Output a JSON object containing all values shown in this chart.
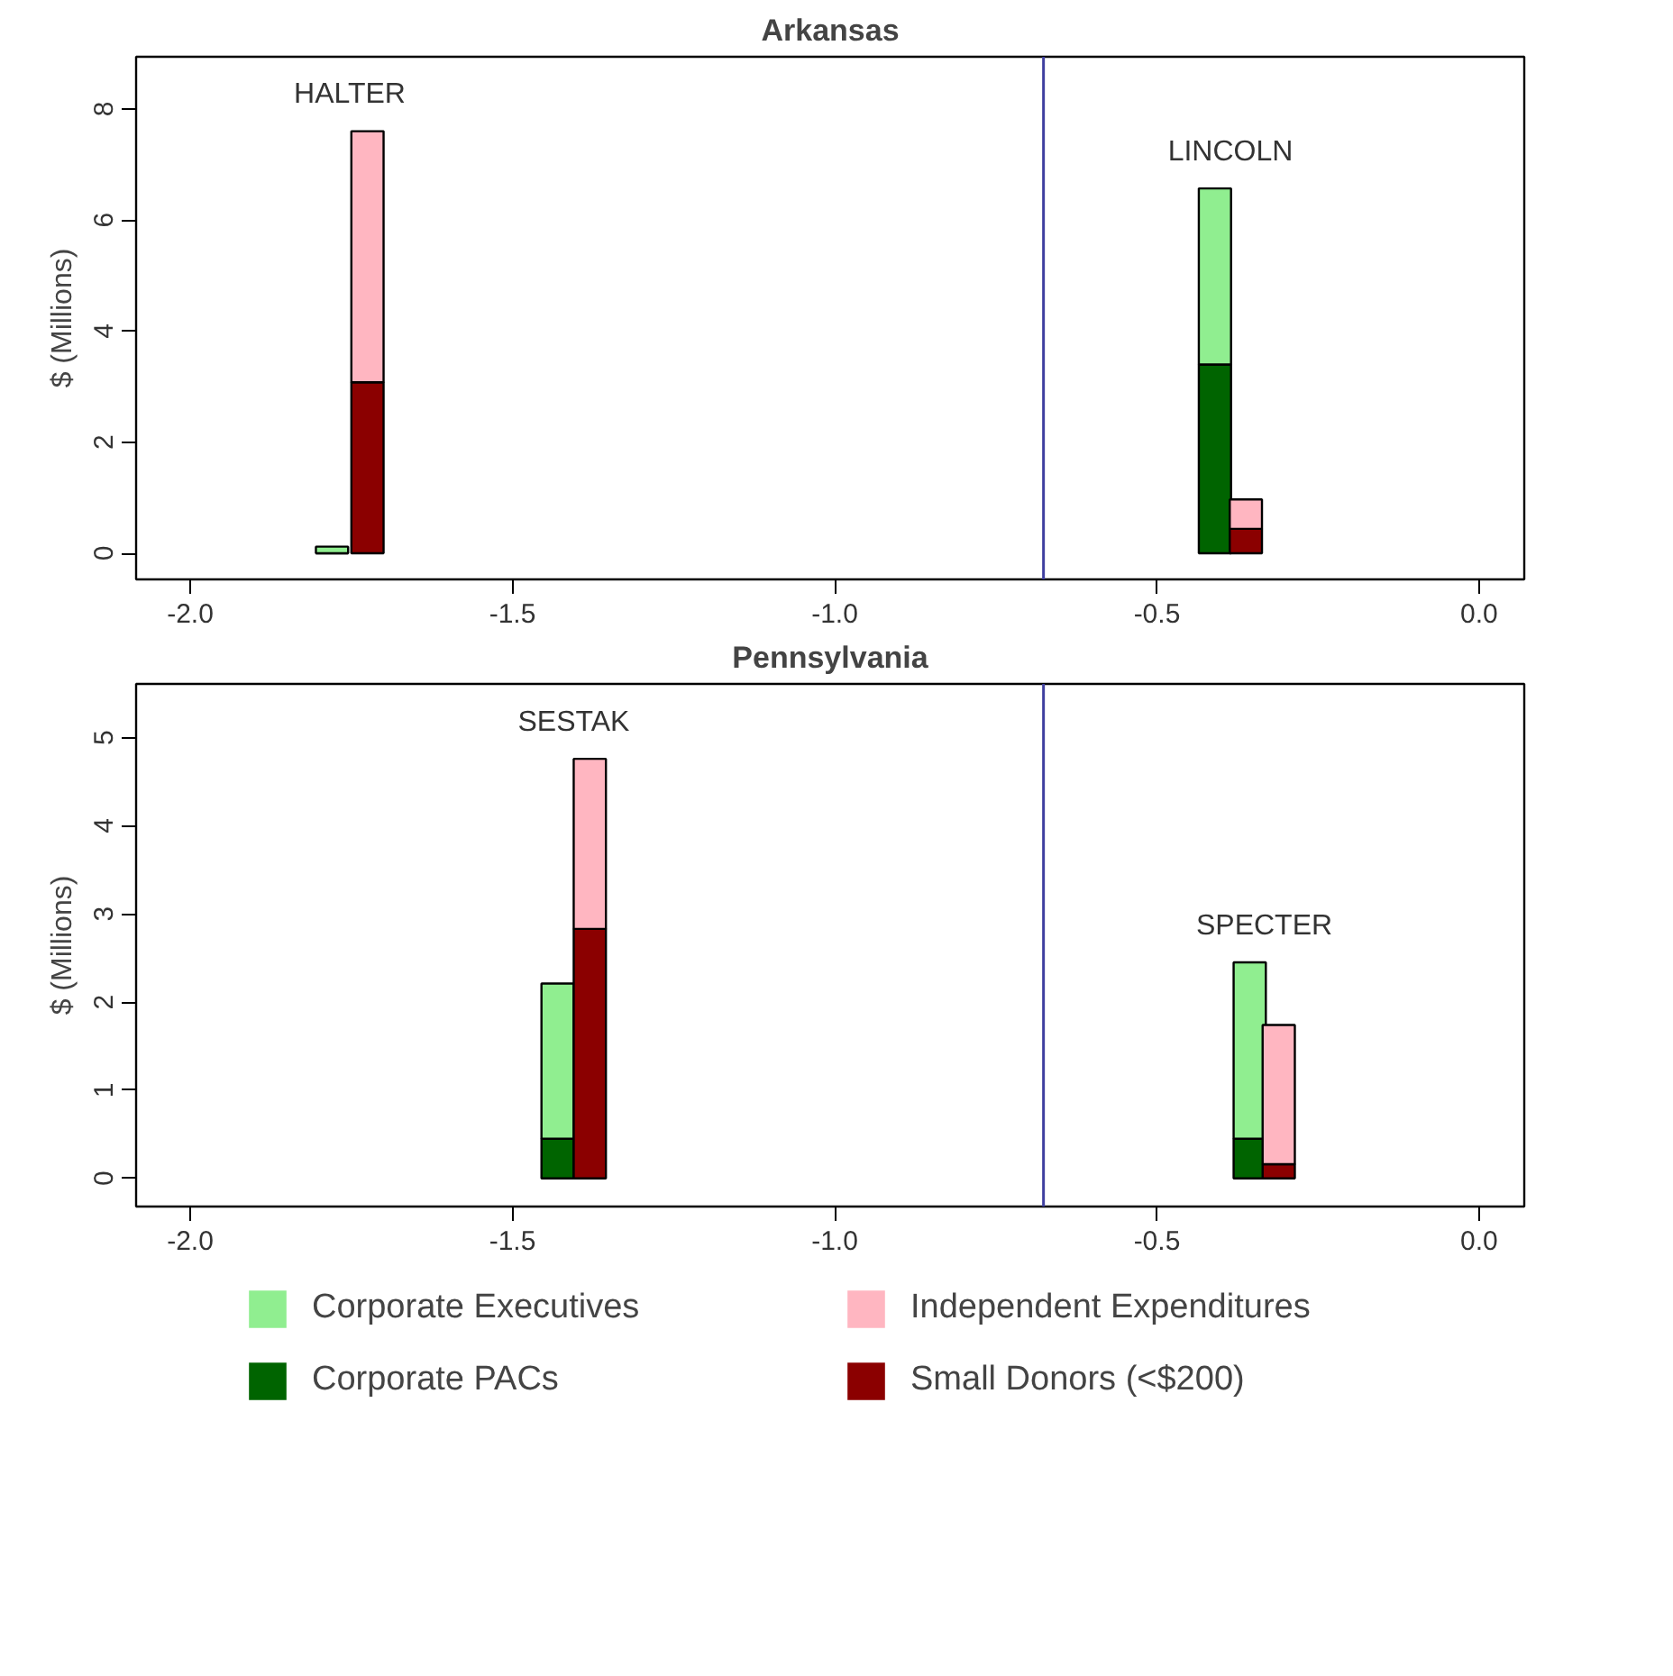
{
  "chart_data": [
    {
      "type": "bar",
      "title": "Arkansas",
      "ylabel": "$ (Millions)",
      "stacked": true,
      "xlim": [
        -2.084,
        0.07
      ],
      "xticks": [
        {
          "value": -2.0,
          "label": "-2.0"
        },
        {
          "value": -1.5,
          "label": "-1.5"
        },
        {
          "value": -1.0,
          "label": "-1.0"
        },
        {
          "value": -0.5,
          "label": "-0.5"
        },
        {
          "value": 0.0,
          "label": "0.0"
        }
      ],
      "ylim": [
        -0.47,
        8.94
      ],
      "yticks": [
        0,
        2,
        4,
        6,
        8
      ],
      "grid": false,
      "legend": false,
      "x": [
        -1.78,
        -1.725,
        -0.41,
        -0.362
      ],
      "series": [
        {
          "color": "#006400",
          "values": [
            0,
            null,
            3.4,
            null
          ]
        },
        {
          "color": "#90ee90",
          "values": [
            0.12,
            null,
            3.17,
            null
          ]
        },
        {
          "color": "#8b0000",
          "values": [
            null,
            3.08,
            null,
            0.44
          ]
        },
        {
          "color": "#ffb6c1",
          "values": [
            null,
            4.52,
            null,
            0.53
          ]
        }
      ],
      "ref_lines": [
        {
          "axis": "x",
          "value": -0.676,
          "color": "#4040a0"
        }
      ],
      "annotations": [
        "HALTER",
        "LINCOLN"
      ]
    },
    {
      "type": "bar",
      "title": "Pennsylvania",
      "ylabel": "$ (Millions)",
      "stacked": true,
      "xlim": [
        -2.084,
        0.07
      ],
      "xticks": [
        {
          "value": -2.0,
          "label": "-2.0"
        },
        {
          "value": -1.5,
          "label": "-1.5"
        },
        {
          "value": -1.0,
          "label": "-1.0"
        },
        {
          "value": -0.5,
          "label": "-0.5"
        },
        {
          "value": 0.0,
          "label": "0.0"
        }
      ],
      "ylim": [
        -0.32,
        5.61
      ],
      "yticks": [
        0,
        1,
        2,
        3,
        4,
        5
      ],
      "grid": false,
      "legend": "bottom",
      "x": [
        -1.43,
        -1.38,
        -0.356,
        -0.311
      ],
      "series": [
        {
          "name": "Corporate PACs",
          "color": "#006400",
          "values": [
            0.45,
            null,
            0.45,
            null
          ]
        },
        {
          "name": "Corporate Executives",
          "color": "#90ee90",
          "values": [
            1.76,
            null,
            2.0,
            null
          ]
        },
        {
          "name": "Small Donors (<$200)",
          "color": "#8b0000",
          "values": [
            null,
            2.83,
            null,
            0.16
          ]
        },
        {
          "name": "Independent Expenditures",
          "color": "#ffb6c1",
          "values": [
            null,
            1.93,
            null,
            1.58
          ]
        }
      ],
      "ref_lines": [
        {
          "axis": "x",
          "value": -0.676,
          "color": "#4040a0"
        }
      ],
      "annotations": [
        "SESTAK",
        "SPECTER"
      ]
    }
  ]
}
